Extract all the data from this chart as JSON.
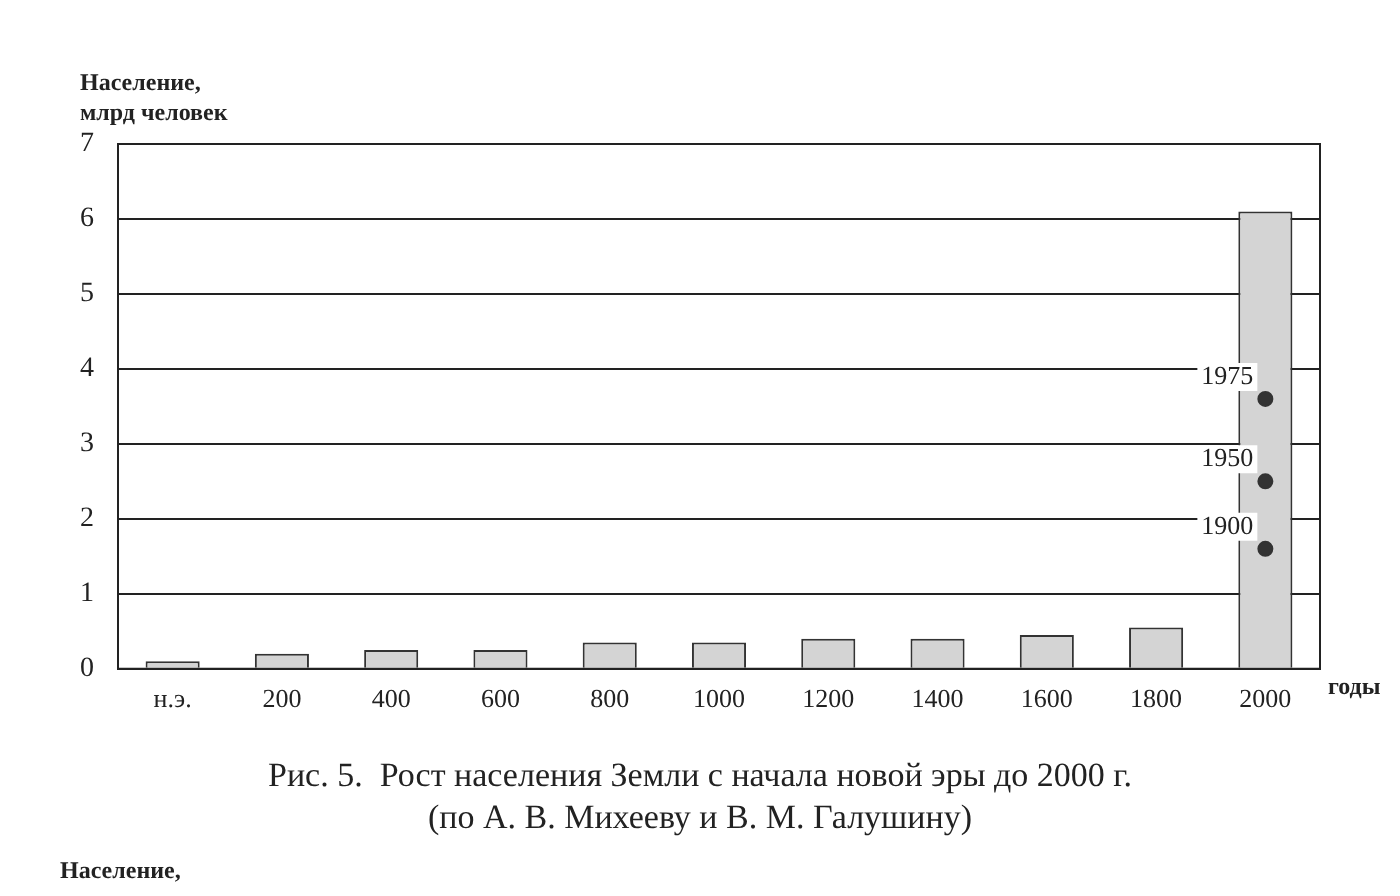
{
  "chart_data": {
    "type": "bar",
    "title": "Рис. 5.  Рост населения Земли с начала новой эры до 2000 г.",
    "subtitle": "(по А. В. Михееву и В. М. Галушину)",
    "xlabel": "годы",
    "ylabel": "Население,\nмлрд человек",
    "categories": [
      "н.э.",
      "200",
      "400",
      "600",
      "800",
      "1000",
      "1200",
      "1400",
      "1600",
      "1800",
      "2000"
    ],
    "series": [
      {
        "color": "#d4d4d4",
        "values": [
          0.1,
          0.2,
          0.25,
          0.25,
          0.35,
          0.35,
          0.4,
          0.4,
          0.45,
          0.55,
          6.1
        ]
      },
      {
        "type": "scatter",
        "name": "1900",
        "color": "#333333",
        "values": [
          null,
          null,
          null,
          null,
          null,
          null,
          null,
          null,
          null,
          null,
          1.6
        ]
      },
      {
        "type": "scatter",
        "name": "1950",
        "color": "#333333",
        "values": [
          null,
          null,
          null,
          null,
          null,
          null,
          null,
          null,
          null,
          null,
          2.5
        ]
      },
      {
        "type": "scatter",
        "name": "1975",
        "color": "#333333",
        "values": [
          null,
          null,
          null,
          null,
          null,
          null,
          null,
          null,
          null,
          null,
          3.6
        ]
      }
    ],
    "marker": "circle",
    "ylim": [
      0,
      7
    ],
    "yticks": [
      0,
      1,
      2,
      3,
      4,
      5,
      6,
      7
    ],
    "grid": "y",
    "legend": false,
    "annotations": [
      "Население,"
    ]
  }
}
